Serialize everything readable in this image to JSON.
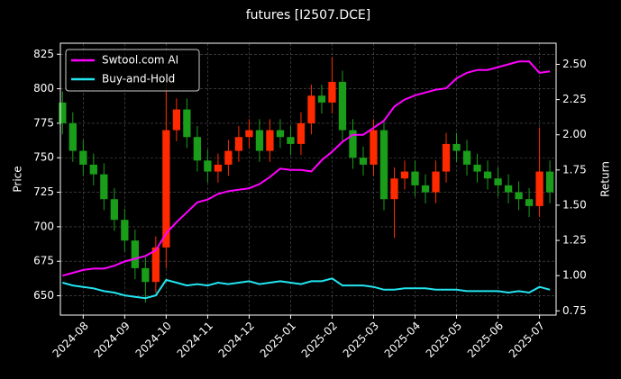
{
  "chart_data": {
    "type": "candlestick",
    "title": "futures [I2507.DCE]",
    "ylabel": "Price",
    "y2label": "Return",
    "x": [
      -0.5,
      -0.25,
      0,
      0.25,
      0.5,
      0.75,
      1,
      1.25,
      1.5,
      1.75,
      2,
      2.25,
      2.5,
      2.75,
      3,
      3.25,
      3.5,
      3.75,
      4,
      4.25,
      4.5,
      4.75,
      5,
      5.25,
      5.5,
      5.75,
      6,
      6.25,
      6.5,
      6.75,
      7,
      7.25,
      7.5,
      7.75,
      8,
      8.25,
      8.5,
      8.75,
      9,
      9.25,
      9.5,
      9.75,
      10,
      10.25,
      10.5,
      10.75,
      11,
      11.25
    ],
    "open": [
      790,
      775,
      755,
      745,
      738,
      720,
      705,
      690,
      670,
      660,
      685,
      770,
      785,
      765,
      748,
      740,
      745,
      755,
      765,
      770,
      755,
      770,
      765,
      760,
      775,
      795,
      790,
      805,
      770,
      750,
      745,
      770,
      720,
      735,
      740,
      730,
      725,
      740,
      760,
      755,
      745,
      740,
      735,
      730,
      725,
      720,
      715,
      740
    ],
    "high": [
      798,
      783,
      763,
      753,
      746,
      728,
      713,
      698,
      678,
      693,
      805,
      793,
      793,
      773,
      756,
      753,
      763,
      773,
      778,
      778,
      778,
      778,
      773,
      783,
      803,
      803,
      823,
      813,
      778,
      758,
      778,
      778,
      743,
      748,
      748,
      738,
      748,
      768,
      768,
      763,
      753,
      748,
      743,
      738,
      733,
      728,
      772,
      748
    ],
    "low": [
      767,
      747,
      737,
      730,
      712,
      697,
      682,
      662,
      645,
      652,
      670,
      762,
      757,
      740,
      732,
      732,
      737,
      747,
      757,
      747,
      747,
      757,
      752,
      752,
      767,
      782,
      782,
      762,
      742,
      737,
      737,
      712,
      692,
      727,
      722,
      717,
      717,
      732,
      747,
      737,
      732,
      727,
      722,
      717,
      712,
      707,
      707,
      717
    ],
    "close": [
      775,
      755,
      745,
      738,
      720,
      705,
      690,
      670,
      660,
      685,
      770,
      785,
      765,
      748,
      740,
      745,
      755,
      765,
      770,
      755,
      770,
      765,
      760,
      775,
      795,
      790,
      805,
      770,
      750,
      745,
      770,
      720,
      735,
      740,
      730,
      725,
      740,
      760,
      755,
      745,
      740,
      735,
      730,
      725,
      720,
      715,
      740,
      725
    ],
    "up_color": "#ff2a00",
    "down_color": "#1a9e1a",
    "series": [
      {
        "name": "Swtool.com AI",
        "color": "#ff00ff",
        "axis": "y2",
        "values": [
          1.0,
          1.02,
          1.04,
          1.05,
          1.05,
          1.07,
          1.1,
          1.12,
          1.14,
          1.18,
          1.3,
          1.38,
          1.45,
          1.52,
          1.54,
          1.58,
          1.6,
          1.61,
          1.62,
          1.65,
          1.7,
          1.76,
          1.75,
          1.75,
          1.74,
          1.82,
          1.88,
          1.95,
          2.0,
          2.0,
          2.05,
          2.1,
          2.2,
          2.25,
          2.28,
          2.3,
          2.32,
          2.33,
          2.4,
          2.44,
          2.46,
          2.46,
          2.48,
          2.5,
          2.52,
          2.52,
          2.44,
          2.45
        ]
      },
      {
        "name": "Buy-and-Hold",
        "color": "#22e5f0",
        "axis": "y2",
        "values": [
          0.95,
          0.93,
          0.92,
          0.91,
          0.89,
          0.88,
          0.86,
          0.85,
          0.84,
          0.86,
          0.97,
          0.95,
          0.93,
          0.94,
          0.93,
          0.95,
          0.94,
          0.95,
          0.96,
          0.94,
          0.95,
          0.96,
          0.95,
          0.94,
          0.96,
          0.96,
          0.98,
          0.93,
          0.93,
          0.93,
          0.92,
          0.9,
          0.9,
          0.91,
          0.91,
          0.91,
          0.9,
          0.9,
          0.9,
          0.89,
          0.89,
          0.89,
          0.89,
          0.88,
          0.89,
          0.88,
          0.92,
          0.9
        ]
      }
    ],
    "xlim": [
      -0.55,
      11.4
    ],
    "ylim": [
      636,
      833
    ],
    "y2lim": [
      0.72,
      2.65
    ],
    "xticks": [
      {
        "value": 0,
        "label": "2024-08"
      },
      {
        "value": 1,
        "label": "2024-09"
      },
      {
        "value": 2,
        "label": "2024-10"
      },
      {
        "value": 3,
        "label": "2024-11"
      },
      {
        "value": 4,
        "label": "2024-12"
      },
      {
        "value": 5,
        "label": "2025-01"
      },
      {
        "value": 6,
        "label": "2025-02"
      },
      {
        "value": 7,
        "label": "2025-03"
      },
      {
        "value": 8,
        "label": "2025-04"
      },
      {
        "value": 9,
        "label": "2025-05"
      },
      {
        "value": 10,
        "label": "2025-06"
      },
      {
        "value": 11,
        "label": "2025-07"
      }
    ],
    "yticks": [
      650,
      675,
      700,
      725,
      750,
      775,
      800,
      825
    ],
    "y2ticks": [
      {
        "value": 0.75,
        "label": "0.75"
      },
      {
        "value": 1,
        "label": "1.00"
      },
      {
        "value": 1.25,
        "label": "1.25"
      },
      {
        "value": 1.5,
        "label": "1.50"
      },
      {
        "value": 1.75,
        "label": "1.75"
      },
      {
        "value": 2,
        "label": "2.00"
      },
      {
        "value": 2.25,
        "label": "2.25"
      },
      {
        "value": 2.5,
        "label": "2.50"
      }
    ],
    "grid": true,
    "legend": "upper left"
  }
}
